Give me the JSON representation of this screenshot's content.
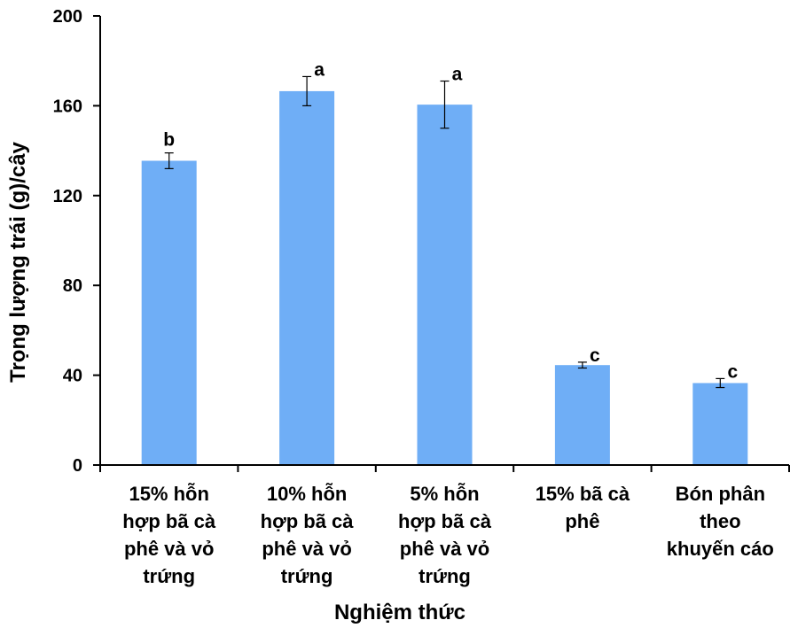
{
  "chart_data": {
    "type": "bar",
    "xlabel": "Nghiệm thức",
    "ylabel": "Trọng lượng trái (g)/cây",
    "ylim": [
      0,
      200
    ],
    "yticks": [
      "0",
      "40",
      "80",
      "120",
      "160",
      "200"
    ],
    "grid": false,
    "categories": [
      [
        "15% hỗn",
        "hợp bã cà",
        "phê và vỏ",
        "trứng"
      ],
      [
        "10% hỗn",
        "hợp bã cà",
        "phê và vỏ",
        "trứng"
      ],
      [
        "5% hỗn",
        "hợp bã cà",
        "phê và vỏ",
        "trứng"
      ],
      [
        "15% bã cà",
        "phê"
      ],
      [
        "Bón phân",
        "theo",
        "khuyến cáo"
      ]
    ],
    "values": [
      135.5,
      166.5,
      160.5,
      44.5,
      36.5
    ],
    "errors": [
      3.5,
      6.5,
      10.5,
      1.3,
      2.0
    ],
    "significance": [
      "b",
      "a",
      "a",
      "c",
      "c"
    ],
    "bar_color": "#6FAEF6"
  }
}
